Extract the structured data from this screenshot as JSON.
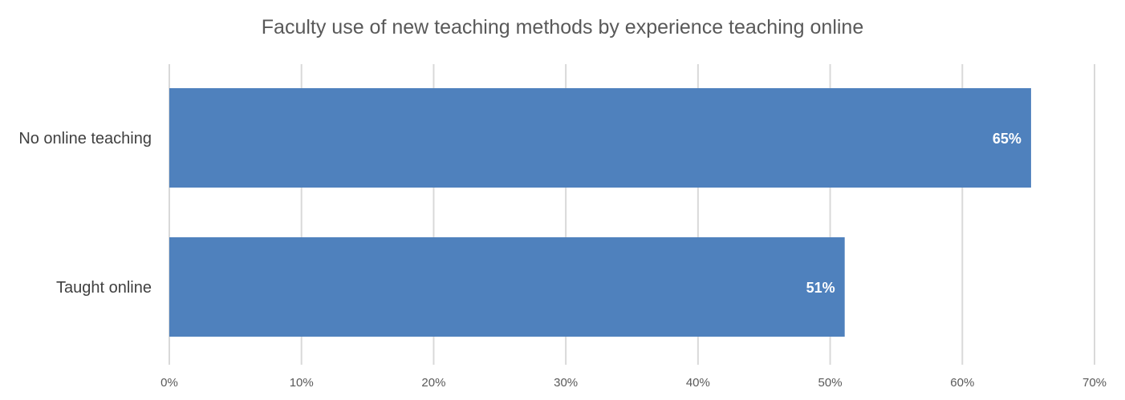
{
  "chart_data": {
    "type": "bar",
    "orientation": "horizontal",
    "title": "Faculty use of new teaching methods by experience teaching online",
    "categories": [
      "No online teaching",
      "Taught online"
    ],
    "values": [
      65,
      51
    ],
    "data_labels": [
      "65%",
      "51%"
    ],
    "xlim": [
      0,
      70
    ],
    "x_ticks": [
      0,
      10,
      20,
      30,
      40,
      50,
      60,
      70
    ],
    "x_tick_labels": [
      "0%",
      "10%",
      "20%",
      "30%",
      "40%",
      "50%",
      "60%",
      "70%"
    ],
    "xlabel": "",
    "ylabel": "",
    "grid": true,
    "legend": "none",
    "bar_color": "#4f81bd",
    "bar_precise_values": [
      65.2,
      51.1
    ]
  }
}
